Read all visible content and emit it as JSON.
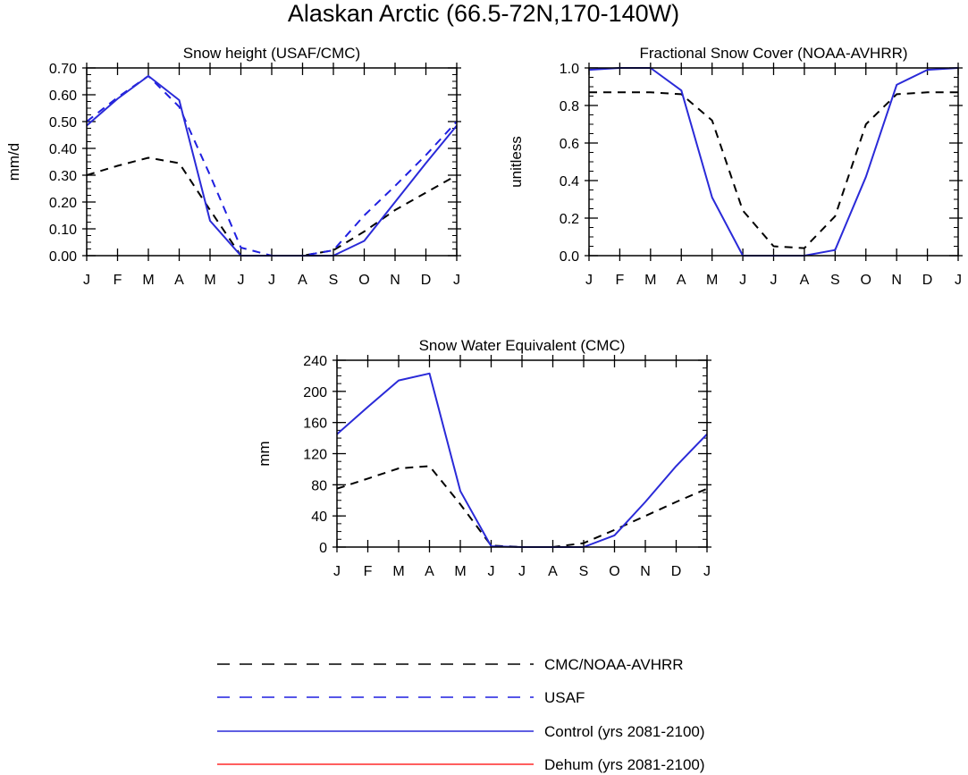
{
  "figure_title": "Alaskan Arctic (66.5-72N,170-140W)",
  "colors": {
    "obs": "#000000",
    "usaf": "#1f1fe0",
    "control": "#2a2ad8",
    "dehum": "#ff2a2a",
    "axis": "#000000"
  },
  "legend": [
    {
      "label": "CMC/NOAA-AVHRR",
      "color": "#000000",
      "dash": true
    },
    {
      "label": "USAF",
      "color": "#1f1fe0",
      "dash": true
    },
    {
      "label": "Control (yrs 2081-2100)",
      "color": "#2a2ad8",
      "dash": false
    },
    {
      "label": "Dehum (yrs 2081-2100)",
      "color": "#ff2a2a",
      "dash": false
    }
  ],
  "chart_data": [
    {
      "type": "line",
      "title": "Snow height (USAF/CMC)",
      "ylabel": "mm/d",
      "xlabel": "",
      "categories": [
        "J",
        "F",
        "M",
        "A",
        "M",
        "J",
        "J",
        "A",
        "S",
        "O",
        "N",
        "D",
        "J"
      ],
      "ylim": [
        0,
        0.7
      ],
      "yticks": [
        "0.00",
        "0.10",
        "0.20",
        "0.30",
        "0.40",
        "0.50",
        "0.60",
        "0.70"
      ],
      "series": [
        {
          "name": "CMC/NOAA-AVHRR",
          "style": "obs",
          "values": [
            0.3,
            0.335,
            0.365,
            0.345,
            0.17,
            0.0,
            0.0,
            0.0,
            0.02,
            0.09,
            0.17,
            0.235,
            0.3
          ]
        },
        {
          "name": "USAF",
          "style": "usaf",
          "values": [
            0.5,
            0.59,
            0.67,
            0.555,
            0.3,
            0.03,
            0.0,
            0.0,
            0.02,
            0.15,
            0.26,
            0.375,
            0.5
          ]
        },
        {
          "name": "Control (yrs 2081-2100)",
          "style": "control",
          "values": [
            0.485,
            0.585,
            0.67,
            0.58,
            0.13,
            0.0,
            0.0,
            0.0,
            0.0,
            0.055,
            0.2,
            0.345,
            0.485
          ]
        }
      ]
    },
    {
      "type": "line",
      "title": "Fractional Snow Cover (NOAA-AVHRR)",
      "ylabel": "unitless",
      "xlabel": "",
      "categories": [
        "J",
        "F",
        "M",
        "A",
        "M",
        "J",
        "J",
        "A",
        "S",
        "O",
        "N",
        "D",
        "J"
      ],
      "ylim": [
        0,
        1.0
      ],
      "yticks": [
        "0.0",
        "0.2",
        "0.4",
        "0.6",
        "0.8",
        "1.0"
      ],
      "series": [
        {
          "name": "CMC/NOAA-AVHRR",
          "style": "obs",
          "values": [
            0.87,
            0.87,
            0.87,
            0.86,
            0.72,
            0.24,
            0.05,
            0.04,
            0.21,
            0.7,
            0.86,
            0.87,
            0.87
          ]
        },
        {
          "name": "Control (yrs 2081-2100)",
          "style": "control",
          "values": [
            0.99,
            1.0,
            1.0,
            0.88,
            0.31,
            0.0,
            0.0,
            0.0,
            0.03,
            0.42,
            0.91,
            0.99,
            1.0
          ]
        }
      ]
    },
    {
      "type": "line",
      "title": "Snow Water Equivalent (CMC)",
      "ylabel": "mm",
      "xlabel": "",
      "categories": [
        "J",
        "F",
        "M",
        "A",
        "M",
        "J",
        "J",
        "A",
        "S",
        "O",
        "N",
        "D",
        "J"
      ],
      "ylim": [
        0,
        240
      ],
      "yticks": [
        "0",
        "40",
        "80",
        "120",
        "160",
        "200",
        "240"
      ],
      "series": [
        {
          "name": "CMC/NOAA-AVHRR",
          "style": "obs",
          "values": [
            75,
            88,
            101,
            104,
            55,
            2,
            0,
            0,
            5,
            22,
            40,
            58,
            75
          ]
        },
        {
          "name": "Control (yrs 2081-2100)",
          "style": "control",
          "values": [
            145,
            180,
            214,
            223,
            72,
            1,
            0,
            0,
            0,
            15,
            58,
            104,
            145
          ]
        }
      ]
    }
  ]
}
